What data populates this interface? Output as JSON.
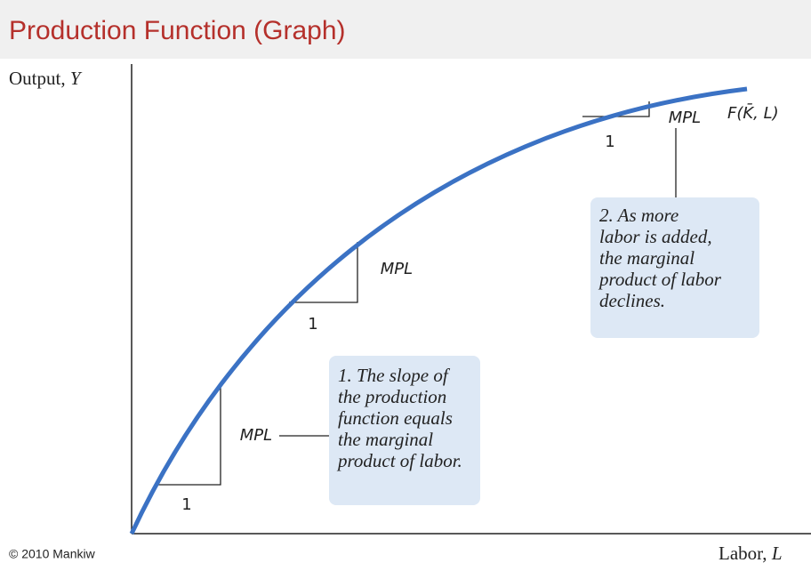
{
  "header": {
    "title": "Production Function (Graph)"
  },
  "diagram": {
    "y_axis_label": {
      "text": "Output,",
      "variable": "Y"
    },
    "x_axis_label": {
      "text": "Labor,",
      "variable": "L"
    },
    "curve_label": "F(K̄, L)",
    "triangles": [
      {
        "rise_label": "MPL",
        "run_label": "1"
      },
      {
        "rise_label": "MPL",
        "run_label": "1"
      },
      {
        "rise_label": "MPL",
        "run_label": "1"
      }
    ],
    "callouts": [
      {
        "lines": [
          "1. The slope of",
          "the production",
          "function equals",
          "the marginal",
          "product of labor."
        ]
      },
      {
        "lines": [
          "2. As more",
          "labor is added,",
          "the marginal",
          "product of labor",
          "declines."
        ]
      }
    ],
    "copyright": "© 2010 Mankiw"
  }
}
